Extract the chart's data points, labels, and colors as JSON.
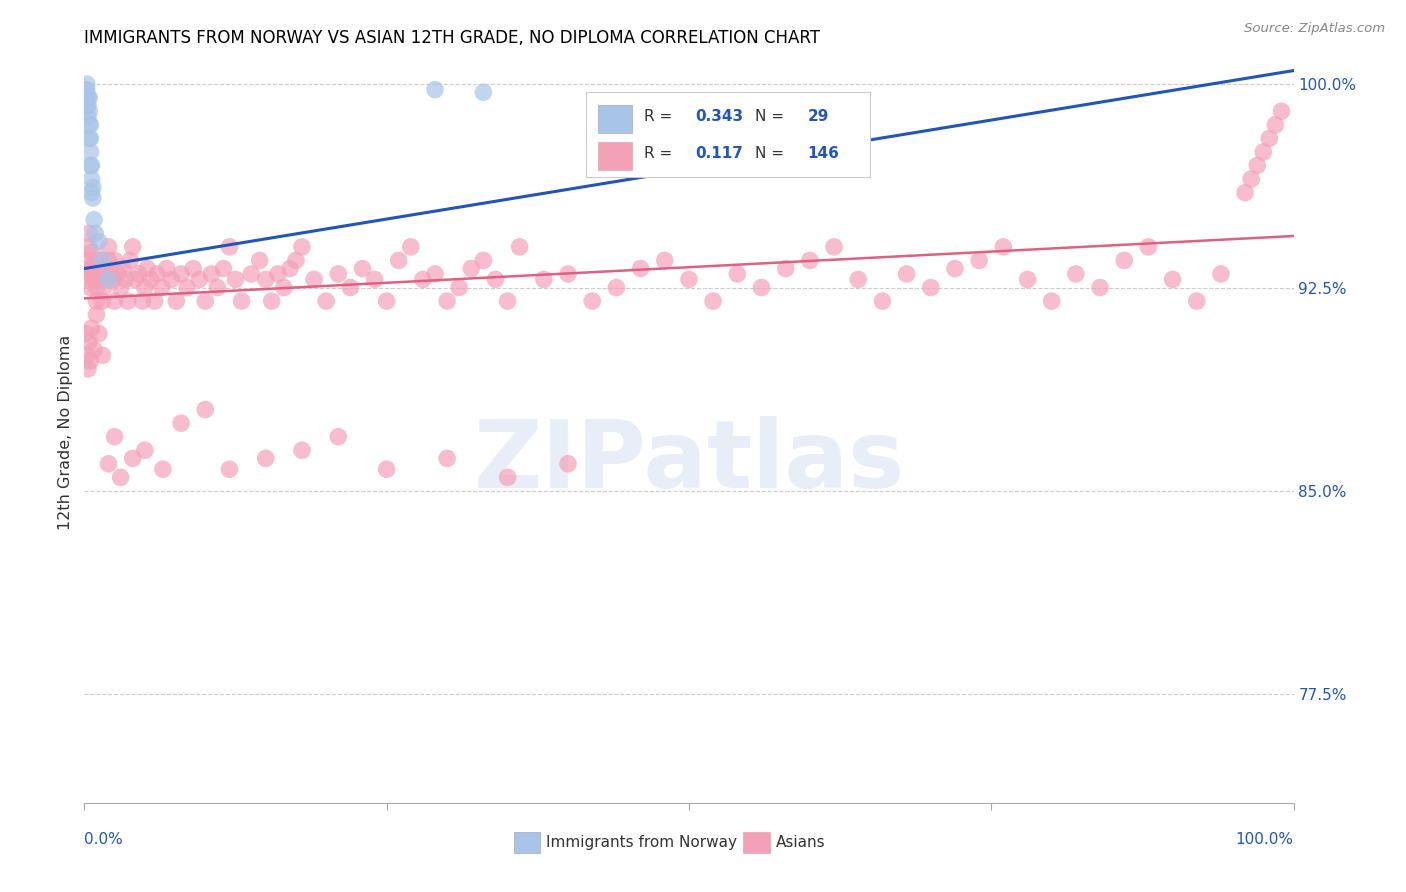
{
  "title": "IMMIGRANTS FROM NORWAY VS ASIAN 12TH GRADE, NO DIPLOMA CORRELATION CHART",
  "source": "Source: ZipAtlas.com",
  "ylabel": "12th Grade, No Diploma",
  "yticks": [
    "100.0%",
    "92.5%",
    "85.0%",
    "77.5%"
  ],
  "ytick_vals": [
    1.0,
    0.925,
    0.85,
    0.775
  ],
  "legend_label1": "Immigrants from Norway",
  "legend_label2": "Asians",
  "R1": "0.343",
  "N1": "29",
  "R2": "0.117",
  "N2": "146",
  "color_norway": "#a8c4e8",
  "color_asian": "#f4a0b8",
  "color_norway_line": "#2255bb",
  "color_asian_line": "#e06080",
  "color_text_blue": "#2255bb",
  "norway_line_x0": 0.0,
  "norway_line_y0": 0.932,
  "norway_line_x1": 1.0,
  "norway_line_y1": 1.005,
  "asian_line_x0": 0.0,
  "asian_line_y0": 0.921,
  "asian_line_x1": 1.0,
  "asian_line_y1": 0.944,
  "norway_x": [
    0.001,
    0.001,
    0.002,
    0.002,
    0.002,
    0.002,
    0.003,
    0.003,
    0.003,
    0.004,
    0.004,
    0.004,
    0.004,
    0.005,
    0.005,
    0.005,
    0.005,
    0.006,
    0.006,
    0.006,
    0.007,
    0.007,
    0.008,
    0.009,
    0.012,
    0.015,
    0.02,
    0.29,
    0.33
  ],
  "norway_y": [
    0.995,
    0.998,
    0.992,
    0.996,
    0.998,
    1.0,
    0.988,
    0.992,
    0.995,
    0.98,
    0.985,
    0.99,
    0.995,
    0.97,
    0.975,
    0.98,
    0.985,
    0.96,
    0.965,
    0.97,
    0.958,
    0.962,
    0.95,
    0.945,
    0.942,
    0.935,
    0.928,
    0.998,
    0.997
  ],
  "asian_x": [
    0.001,
    0.002,
    0.003,
    0.004,
    0.004,
    0.005,
    0.005,
    0.006,
    0.007,
    0.008,
    0.009,
    0.01,
    0.01,
    0.011,
    0.012,
    0.013,
    0.015,
    0.015,
    0.016,
    0.017,
    0.018,
    0.02,
    0.02,
    0.022,
    0.024,
    0.025,
    0.025,
    0.028,
    0.03,
    0.032,
    0.034,
    0.036,
    0.038,
    0.04,
    0.042,
    0.045,
    0.048,
    0.05,
    0.052,
    0.055,
    0.058,
    0.06,
    0.064,
    0.068,
    0.072,
    0.076,
    0.08,
    0.085,
    0.09,
    0.095,
    0.1,
    0.105,
    0.11,
    0.115,
    0.12,
    0.125,
    0.13,
    0.138,
    0.145,
    0.15,
    0.155,
    0.16,
    0.165,
    0.17,
    0.175,
    0.18,
    0.19,
    0.2,
    0.21,
    0.22,
    0.23,
    0.24,
    0.25,
    0.26,
    0.27,
    0.28,
    0.29,
    0.3,
    0.31,
    0.32,
    0.33,
    0.34,
    0.35,
    0.36,
    0.38,
    0.4,
    0.42,
    0.44,
    0.46,
    0.48,
    0.5,
    0.52,
    0.54,
    0.56,
    0.58,
    0.6,
    0.62,
    0.64,
    0.66,
    0.68,
    0.7,
    0.72,
    0.74,
    0.76,
    0.78,
    0.8,
    0.82,
    0.84,
    0.86,
    0.88,
    0.9,
    0.92,
    0.94,
    0.96,
    0.965,
    0.97,
    0.975,
    0.98,
    0.985,
    0.99,
    0.001,
    0.002,
    0.003,
    0.004,
    0.005,
    0.006,
    0.008,
    0.01,
    0.012,
    0.015,
    0.02,
    0.025,
    0.03,
    0.04,
    0.05,
    0.065,
    0.08,
    0.1,
    0.12,
    0.15,
    0.18,
    0.21,
    0.25,
    0.3,
    0.35,
    0.4
  ],
  "asian_y": [
    0.935,
    0.928,
    0.932,
    0.94,
    0.945,
    0.93,
    0.925,
    0.938,
    0.932,
    0.928,
    0.935,
    0.92,
    0.925,
    0.932,
    0.928,
    0.935,
    0.92,
    0.93,
    0.925,
    0.932,
    0.928,
    0.935,
    0.94,
    0.93,
    0.928,
    0.935,
    0.92,
    0.93,
    0.925,
    0.932,
    0.928,
    0.92,
    0.935,
    0.94,
    0.928,
    0.93,
    0.92,
    0.925,
    0.932,
    0.928,
    0.92,
    0.93,
    0.925,
    0.932,
    0.928,
    0.92,
    0.93,
    0.925,
    0.932,
    0.928,
    0.92,
    0.93,
    0.925,
    0.932,
    0.94,
    0.928,
    0.92,
    0.93,
    0.935,
    0.928,
    0.92,
    0.93,
    0.925,
    0.932,
    0.935,
    0.94,
    0.928,
    0.92,
    0.93,
    0.925,
    0.932,
    0.928,
    0.92,
    0.935,
    0.94,
    0.928,
    0.93,
    0.92,
    0.925,
    0.932,
    0.935,
    0.928,
    0.92,
    0.94,
    0.928,
    0.93,
    0.92,
    0.925,
    0.932,
    0.935,
    0.928,
    0.92,
    0.93,
    0.925,
    0.932,
    0.935,
    0.94,
    0.928,
    0.92,
    0.93,
    0.925,
    0.932,
    0.935,
    0.94,
    0.928,
    0.92,
    0.93,
    0.925,
    0.935,
    0.94,
    0.928,
    0.92,
    0.93,
    0.96,
    0.965,
    0.97,
    0.975,
    0.98,
    0.985,
    0.99,
    0.908,
    0.9,
    0.895,
    0.905,
    0.898,
    0.91,
    0.902,
    0.915,
    0.908,
    0.9,
    0.86,
    0.87,
    0.855,
    0.862,
    0.865,
    0.858,
    0.875,
    0.88,
    0.858,
    0.862,
    0.865,
    0.87,
    0.858,
    0.862,
    0.855,
    0.86
  ],
  "xlim": [
    0.0,
    1.0
  ],
  "ylim": [
    0.735,
    1.008
  ],
  "figsize": [
    14.06,
    8.92
  ],
  "dpi": 100
}
